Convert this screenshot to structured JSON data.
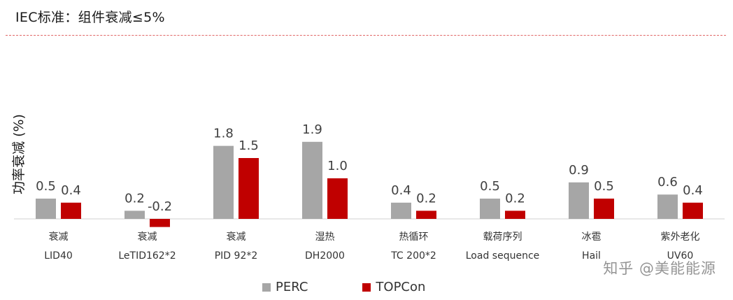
{
  "header": {
    "title": "IEC标准：组件衰减≤5%"
  },
  "watermark": "知乎 @美能能源",
  "colors": {
    "PERC": "#a6a6a6",
    "TOPCon": "#c00000",
    "header_rule": "#e06666"
  },
  "chart_data": {
    "type": "bar",
    "title": "",
    "ylabel": "功率衰减 (%)",
    "xlabel": "",
    "categories": [
      {
        "line1": "衰减",
        "line2": "LID40"
      },
      {
        "line1": "衰减",
        "line2": "LeTID162*2"
      },
      {
        "line1": "衰减",
        "line2": "PID 92*2"
      },
      {
        "line1": "湿热",
        "line2": "DH2000"
      },
      {
        "line1": "热循环",
        "line2": "TC 200*2"
      },
      {
        "line1": "载荷序列",
        "line2": "Load sequence"
      },
      {
        "line1": "冰雹",
        "line2": "Hail"
      },
      {
        "line1": "紫外老化",
        "line2": "UV60"
      }
    ],
    "series": [
      {
        "name": "PERC",
        "values": [
          0.5,
          0.2,
          1.8,
          1.9,
          0.4,
          0.5,
          0.9,
          0.6
        ],
        "labels": [
          "0.5",
          "0.2",
          "1.8",
          "1.9",
          "0.4",
          "0.5",
          "0.9",
          "0.6"
        ]
      },
      {
        "name": "TOPCon",
        "values": [
          0.4,
          -0.2,
          1.5,
          1.0,
          0.2,
          0.2,
          0.5,
          0.4
        ],
        "labels": [
          "0.4",
          "-0.2",
          "1.5",
          "1.0",
          "0.2",
          "0.2",
          "0.5",
          "0.4"
        ]
      }
    ],
    "ylim": [
      -0.3,
      2.0
    ],
    "grid": false,
    "legend_position": "bottom-center"
  }
}
